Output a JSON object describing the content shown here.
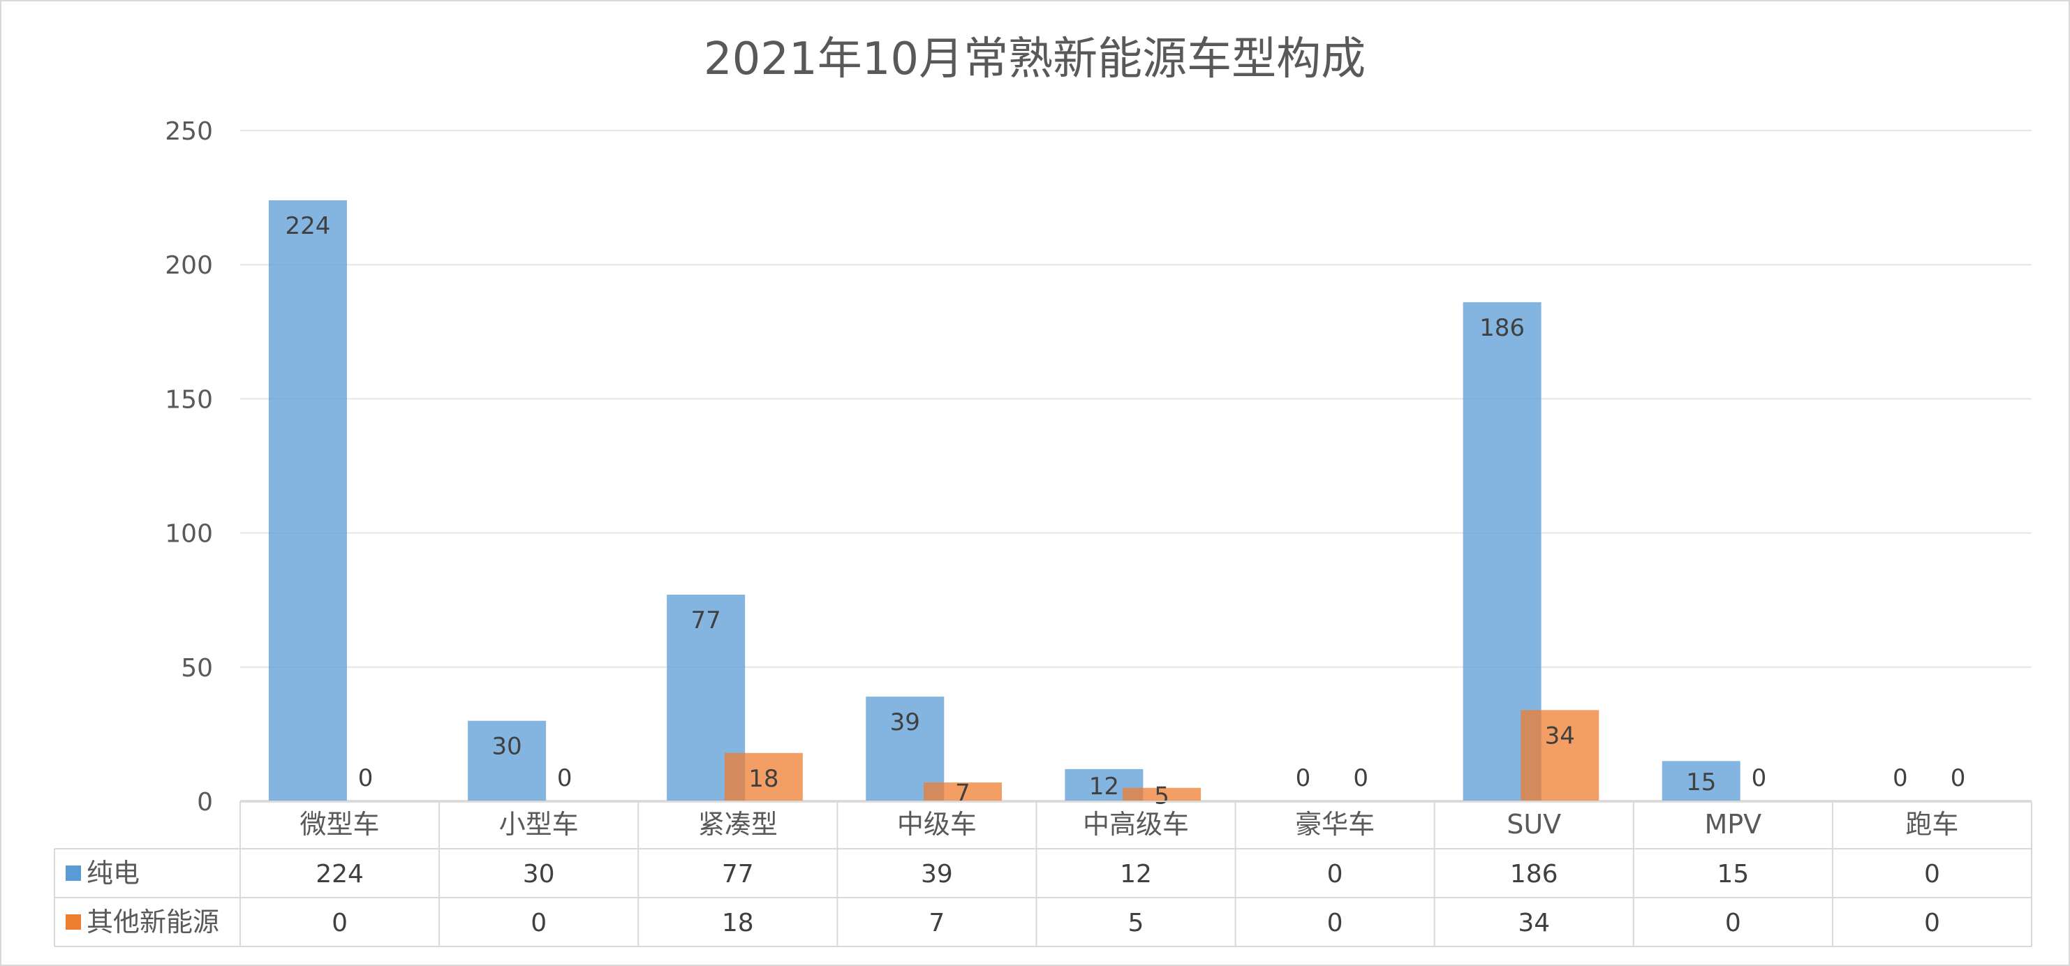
{
  "chart_data": {
    "type": "bar",
    "title": "2021年10月常熟新能源车型构成",
    "categories": [
      "微型车",
      "小型车",
      "紧凑型",
      "中级车",
      "中高级车",
      "豪华车",
      "SUV",
      "MPV",
      "跑车"
    ],
    "series": [
      {
        "name": "纯电",
        "values": [
          224,
          30,
          77,
          39,
          12,
          0,
          186,
          15,
          0
        ]
      },
      {
        "name": "其他新能源",
        "values": [
          0,
          0,
          18,
          7,
          5,
          0,
          34,
          0,
          0
        ]
      }
    ],
    "ylim": [
      0,
      250
    ],
    "yticks": [
      0,
      50,
      100,
      150,
      200,
      250
    ],
    "grid": true,
    "data_table": true,
    "legend": "in data table",
    "colors": {
      "纯电": "#5B9BD5",
      "其他新能源": "#ED7D31"
    }
  }
}
